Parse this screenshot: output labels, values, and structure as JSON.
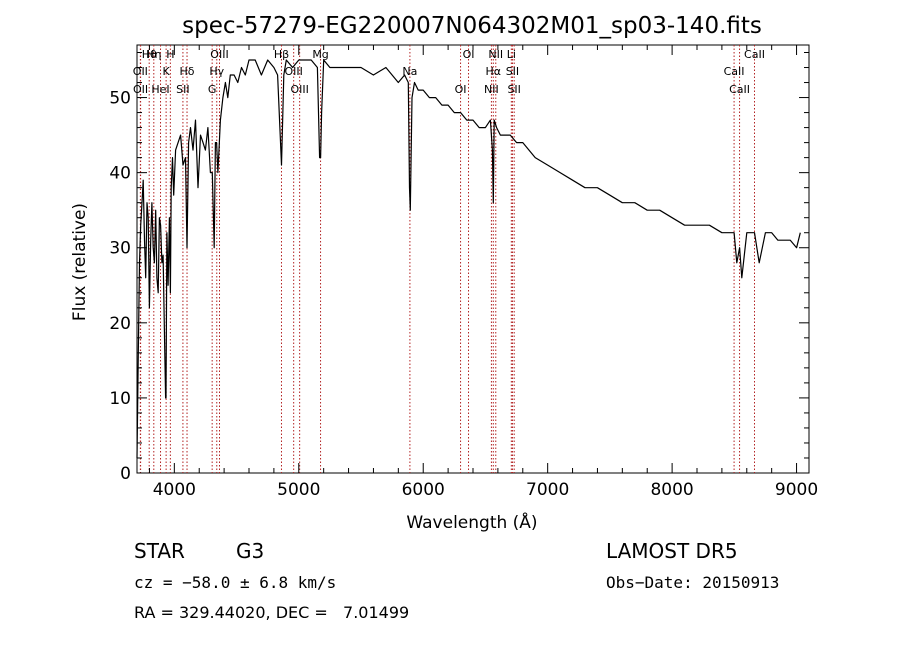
{
  "chart_data": {
    "type": "line",
    "title": "spec-57279-EG220007N064302M01_sp03-140.fits",
    "xlabel": "Wavelength (Å)",
    "ylabel": "Flux (relative)",
    "xlim": [
      3700,
      9100
    ],
    "ylim": [
      0,
      57
    ],
    "xticks": [
      4000,
      5000,
      6000,
      7000,
      8000,
      9000
    ],
    "yticks": [
      0,
      10,
      20,
      30,
      40,
      50
    ],
    "grid": false,
    "series": [
      {
        "color": "#000000",
        "x": [
          3700,
          3710,
          3720,
          3730,
          3740,
          3750,
          3760,
          3770,
          3780,
          3790,
          3800,
          3810,
          3820,
          3830,
          3840,
          3850,
          3860,
          3870,
          3880,
          3890,
          3900,
          3910,
          3920,
          3930,
          3933,
          3940,
          3950,
          3960,
          3968,
          3975,
          3985,
          3995,
          4010,
          4030,
          4050,
          4070,
          4090,
          4102,
          4115,
          4130,
          4150,
          4170,
          4190,
          4210,
          4230,
          4250,
          4270,
          4290,
          4305,
          4320,
          4330,
          4340,
          4350,
          4370,
          4390,
          4410,
          4430,
          4450,
          4480,
          4510,
          4540,
          4570,
          4600,
          4650,
          4700,
          4750,
          4800,
          4830,
          4861,
          4880,
          4900,
          4950,
          5000,
          5050,
          5100,
          5150,
          5167,
          5175,
          5183,
          5200,
          5250,
          5300,
          5400,
          5500,
          5600,
          5700,
          5800,
          5850,
          5880,
          5890,
          5896,
          5910,
          5930,
          5960,
          6000,
          6050,
          6100,
          6150,
          6200,
          6250,
          6300,
          6350,
          6400,
          6450,
          6500,
          6540,
          6556,
          6563,
          6570,
          6590,
          6620,
          6650,
          6700,
          6750,
          6800,
          6900,
          7000,
          7100,
          7200,
          7300,
          7400,
          7500,
          7600,
          7700,
          7800,
          7900,
          8000,
          8100,
          8200,
          8300,
          8400,
          8498,
          8520,
          8542,
          8560,
          8600,
          8662,
          8700,
          8750,
          8800,
          8850,
          8900,
          8950,
          9000,
          9030
        ],
        "y": [
          2,
          15,
          28,
          33,
          36,
          39,
          31,
          26,
          36,
          34,
          22,
          31,
          36,
          30,
          28,
          35,
          26,
          24,
          34,
          33,
          28,
          29,
          19,
          10,
          10,
          32,
          25,
          34,
          24,
          38,
          42,
          37,
          43,
          44,
          45,
          41,
          42,
          30,
          44,
          46,
          43,
          47,
          38,
          45,
          44,
          43,
          46,
          40,
          40,
          30,
          44,
          44,
          40,
          47,
          50,
          52,
          50,
          53,
          53,
          52,
          54,
          53,
          55,
          55,
          53,
          55,
          54,
          53,
          41,
          53,
          55,
          54,
          55,
          55,
          55,
          54,
          42,
          42,
          48,
          55,
          54,
          54,
          54,
          54,
          53,
          54,
          52,
          53,
          52,
          38,
          35,
          50,
          52,
          51,
          51,
          50,
          50,
          49,
          49,
          48,
          48,
          47,
          47,
          46,
          46,
          47,
          43,
          36,
          47,
          46,
          45,
          45,
          45,
          44,
          44,
          42,
          41,
          40,
          39,
          38,
          38,
          37,
          36,
          36,
          35,
          35,
          34,
          33,
          33,
          33,
          32,
          32,
          28,
          30,
          26,
          32,
          32,
          28,
          32,
          32,
          31,
          31,
          31,
          30,
          32
        ]
      }
    ],
    "line_markers": [
      {
        "label": "Hθ",
        "x": 3798
      },
      {
        "label": "OII",
        "x": 3727
      },
      {
        "label": "OII",
        "x": 3729
      },
      {
        "label": "Hη",
        "x": 3835
      },
      {
        "label": "K",
        "x": 3934
      },
      {
        "label": "HeI",
        "x": 3889
      },
      {
        "label": "H",
        "x": 3968
      },
      {
        "label": "Hδ",
        "x": 4102
      },
      {
        "label": "SII",
        "x": 4069
      },
      {
        "label": "OIII",
        "x": 4363
      },
      {
        "label": "Hγ",
        "x": 4341
      },
      {
        "label": "G",
        "x": 4304
      },
      {
        "label": "Hβ",
        "x": 4861
      },
      {
        "label": "OIII",
        "x": 4959
      },
      {
        "label": "OIII",
        "x": 5007
      },
      {
        "label": "Mg",
        "x": 5175
      },
      {
        "label": "Na",
        "x": 5893
      },
      {
        "label": "OI",
        "x": 6300
      },
      {
        "label": "OI",
        "x": 6364
      },
      {
        "label": "Hα",
        "x": 6563
      },
      {
        "label": "NII",
        "x": 6548
      },
      {
        "label": "NII",
        "x": 6583
      },
      {
        "label": "SII",
        "x": 6717
      },
      {
        "label": "SII",
        "x": 6731
      },
      {
        "label": "Li",
        "x": 6708
      },
      {
        "label": "CaII",
        "x": 8498
      },
      {
        "label": "CaII",
        "x": 8542
      },
      {
        "label": "CaII",
        "x": 8662
      }
    ],
    "marker_color": "#b22222"
  },
  "info": {
    "class": "STAR",
    "subclass": "G3",
    "survey": "LAMOST DR5",
    "cz": "cz = −58.0 ± 6.8 km/s",
    "obs_date": "Obs−Date: 20150913",
    "radec": "RA = 329.44020, DEC =   7.01499"
  }
}
